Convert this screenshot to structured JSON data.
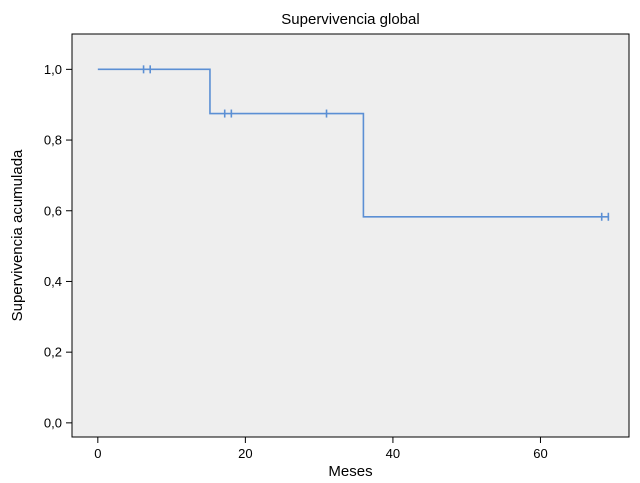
{
  "colors": {
    "plot_background": "#eeeeee",
    "series_line": "#5b8fd4",
    "axis": "#000000"
  },
  "chart_data": {
    "type": "line",
    "title": "Supervivencia global",
    "xlabel": "Meses",
    "ylabel": "Supervivencia acumulada",
    "xlim": [
      -3.5,
      72
    ],
    "ylim": [
      -0.04,
      1.1
    ],
    "x_ticks": [
      0,
      20,
      40,
      60
    ],
    "x_tick_labels": [
      "0",
      "20",
      "40",
      "60"
    ],
    "y_ticks": [
      0.0,
      0.2,
      0.4,
      0.6,
      0.8,
      1.0
    ],
    "y_tick_labels": [
      "0,0",
      "0,2",
      "0,4",
      "0,6",
      "0,8",
      "1,0"
    ],
    "grid": false,
    "legend": "none",
    "series": [
      {
        "step": "post",
        "x": [
          0,
          15.2,
          36,
          69.3
        ],
        "y": [
          1.0,
          0.875,
          0.583,
          0.583
        ],
        "censored": [
          {
            "x": 6.2,
            "y": 1.0
          },
          {
            "x": 7.1,
            "y": 1.0
          },
          {
            "x": 17.2,
            "y": 0.875
          },
          {
            "x": 18.1,
            "y": 0.875
          },
          {
            "x": 31.0,
            "y": 0.875
          },
          {
            "x": 68.3,
            "y": 0.583
          },
          {
            "x": 69.2,
            "y": 0.583
          }
        ]
      }
    ]
  }
}
